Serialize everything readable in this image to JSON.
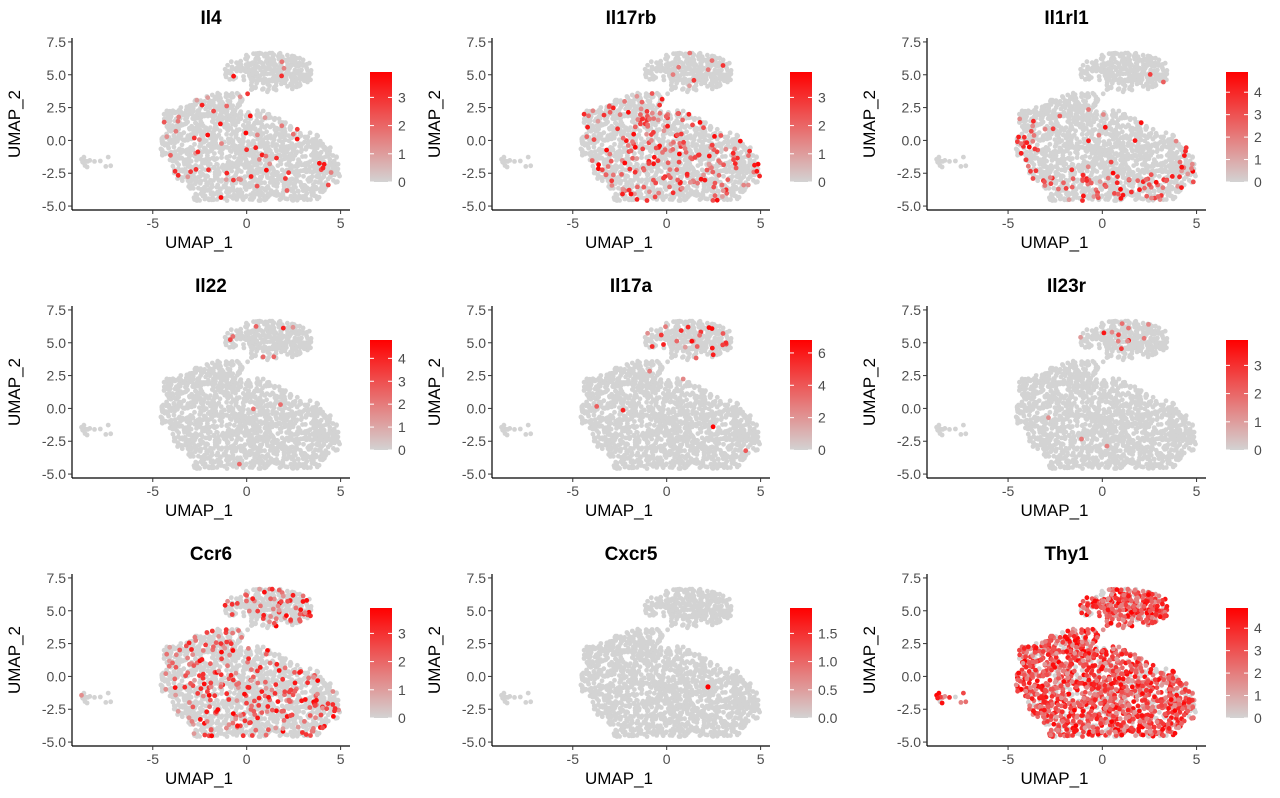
{
  "figure": {
    "layout": {
      "rows": 3,
      "cols": 3
    },
    "colors": {
      "low": "#d3d3d3",
      "high": "#ff0000",
      "axis": "#000000",
      "text": "#4d4d4d"
    }
  },
  "chart_data": [
    {
      "type": "scatter",
      "title": "Il4",
      "xlabel": "UMAP_1",
      "ylabel": "UMAP_2",
      "xlim": [
        -9.3,
        5.5
      ],
      "ylim": [
        -5.3,
        7.8
      ],
      "x_ticks": [
        -5,
        0,
        5
      ],
      "x_tick_labels": [
        "-5",
        "0",
        "5"
      ],
      "y_ticks": [
        -5.0,
        -2.5,
        0.0,
        2.5,
        5.0,
        7.5
      ],
      "y_tick_labels": [
        "-5.0",
        "-2.5",
        "0.0",
        "2.5",
        "5.0",
        "7.5"
      ],
      "legend": {
        "position": "right",
        "min": 0,
        "max": 3.9,
        "ticks": [
          0,
          1,
          2,
          3
        ],
        "tick_labels": [
          "0",
          "1",
          "2",
          "3"
        ]
      },
      "grid": false,
      "expression": {
        "density": 0.05,
        "region": "scattered",
        "max_value": 3.9
      }
    },
    {
      "type": "scatter",
      "title": "Il17rb",
      "xlabel": "UMAP_1",
      "ylabel": "UMAP_2",
      "xlim": [
        -9.3,
        5.5
      ],
      "ylim": [
        -5.3,
        7.8
      ],
      "x_ticks": [
        -5,
        0,
        5
      ],
      "x_tick_labels": [
        "-5",
        "0",
        "5"
      ],
      "y_ticks": [
        -5.0,
        -2.5,
        0.0,
        2.5,
        5.0,
        7.5
      ],
      "y_tick_labels": [
        "-5.0",
        "-2.5",
        "0.0",
        "2.5",
        "5.0",
        "7.5"
      ],
      "legend": {
        "position": "right",
        "min": 0,
        "max": 3.9,
        "ticks": [
          0,
          1,
          2,
          3
        ],
        "tick_labels": [
          "0",
          "1",
          "2",
          "3"
        ]
      },
      "grid": false,
      "expression": {
        "density": 0.14,
        "region": "body",
        "max_value": 3.9
      }
    },
    {
      "type": "scatter",
      "title": "Il1rl1",
      "xlabel": "UMAP_1",
      "ylabel": "UMAP_2",
      "xlim": [
        -9.3,
        5.5
      ],
      "ylim": [
        -5.3,
        7.8
      ],
      "x_ticks": [
        -5,
        0,
        5
      ],
      "x_tick_labels": [
        "-5",
        "0",
        "5"
      ],
      "y_ticks": [
        -5.0,
        -2.5,
        0.0,
        2.5,
        5.0,
        7.5
      ],
      "y_tick_labels": [
        "-5.0",
        "-2.5",
        "0.0",
        "2.5",
        "5.0",
        "7.5"
      ],
      "legend": {
        "position": "right",
        "min": 0,
        "max": 4.9,
        "ticks": [
          0,
          1,
          2,
          3,
          4
        ],
        "tick_labels": [
          "0",
          "1",
          "2",
          "3",
          "4"
        ]
      },
      "grid": false,
      "expression": {
        "density": 0.15,
        "region": "bottom-edge",
        "max_value": 4.9
      }
    },
    {
      "type": "scatter",
      "title": "Il22",
      "xlabel": "UMAP_1",
      "ylabel": "UMAP_2",
      "xlim": [
        -9.3,
        5.5
      ],
      "ylim": [
        -5.3,
        7.8
      ],
      "x_ticks": [
        -5,
        0,
        5
      ],
      "x_tick_labels": [
        "-5",
        "0",
        "5"
      ],
      "y_ticks": [
        -5.0,
        -2.5,
        0.0,
        2.5,
        5.0,
        7.5
      ],
      "y_tick_labels": [
        "-5.0",
        "-2.5",
        "0.0",
        "2.5",
        "5.0",
        "7.5"
      ],
      "legend": {
        "position": "right",
        "min": 0,
        "max": 4.8,
        "ticks": [
          0,
          1,
          2,
          3,
          4
        ],
        "tick_labels": [
          "0",
          "1",
          "2",
          "3",
          "4"
        ]
      },
      "grid": false,
      "expression": {
        "density": 0.03,
        "region": "top-blob",
        "max_value": 4.8
      }
    },
    {
      "type": "scatter",
      "title": "Il17a",
      "xlabel": "UMAP_1",
      "ylabel": "UMAP_2",
      "xlim": [
        -9.3,
        5.5
      ],
      "ylim": [
        -5.3,
        7.8
      ],
      "x_ticks": [
        -5,
        0,
        5
      ],
      "x_tick_labels": [
        "-5",
        "0",
        "5"
      ],
      "y_ticks": [
        -5.0,
        -2.5,
        0.0,
        2.5,
        5.0,
        7.5
      ],
      "y_tick_labels": [
        "-5.0",
        "-2.5",
        "0.0",
        "2.5",
        "5.0",
        "7.5"
      ],
      "legend": {
        "position": "right",
        "min": 0,
        "max": 6.8,
        "ticks": [
          0,
          2,
          4,
          6
        ],
        "tick_labels": [
          "0",
          "2",
          "4",
          "6"
        ]
      },
      "grid": false,
      "expression": {
        "density": 0.08,
        "region": "top-blob",
        "max_value": 6.8
      }
    },
    {
      "type": "scatter",
      "title": "Il23r",
      "xlabel": "UMAP_1",
      "ylabel": "UMAP_2",
      "xlim": [
        -9.3,
        5.5
      ],
      "ylim": [
        -5.3,
        7.8
      ],
      "x_ticks": [
        -5,
        0,
        5
      ],
      "x_tick_labels": [
        "-5",
        "0",
        "5"
      ],
      "y_ticks": [
        -5.0,
        -2.5,
        0.0,
        2.5,
        5.0,
        7.5
      ],
      "y_tick_labels": [
        "-5.0",
        "-2.5",
        "0.0",
        "2.5",
        "5.0",
        "7.5"
      ],
      "legend": {
        "position": "right",
        "min": 0,
        "max": 3.9,
        "ticks": [
          0,
          1,
          2,
          3
        ],
        "tick_labels": [
          "0",
          "1",
          "2",
          "3"
        ]
      },
      "grid": false,
      "expression": {
        "density": 0.05,
        "region": "top-blob",
        "max_value": 3.9
      }
    },
    {
      "type": "scatter",
      "title": "Ccr6",
      "xlabel": "UMAP_1",
      "ylabel": "UMAP_2",
      "xlim": [
        -9.3,
        5.5
      ],
      "ylim": [
        -5.3,
        7.8
      ],
      "x_ticks": [
        -5,
        0,
        5
      ],
      "x_tick_labels": [
        "-5",
        "0",
        "5"
      ],
      "y_ticks": [
        -5.0,
        -2.5,
        0.0,
        2.5,
        5.0,
        7.5
      ],
      "y_tick_labels": [
        "-5.0",
        "-2.5",
        "0.0",
        "2.5",
        "5.0",
        "7.5"
      ],
      "legend": {
        "position": "right",
        "min": 0,
        "max": 3.9,
        "ticks": [
          0,
          1,
          2,
          3
        ],
        "tick_labels": [
          "0",
          "1",
          "2",
          "3"
        ]
      },
      "grid": false,
      "expression": {
        "density": 0.16,
        "region": "everywhere",
        "max_value": 3.9
      }
    },
    {
      "type": "scatter",
      "title": "Cxcr5",
      "xlabel": "UMAP_1",
      "ylabel": "UMAP_2",
      "xlim": [
        -9.3,
        5.5
      ],
      "ylim": [
        -5.3,
        7.8
      ],
      "x_ticks": [
        -5,
        0,
        5
      ],
      "x_tick_labels": [
        "-5",
        "0",
        "5"
      ],
      "y_ticks": [
        -5.0,
        -2.5,
        0.0,
        2.5,
        5.0,
        7.5
      ],
      "y_tick_labels": [
        "-5.0",
        "-2.5",
        "0.0",
        "2.5",
        "5.0",
        "7.5"
      ],
      "legend": {
        "position": "right",
        "min": 0,
        "max": 1.95,
        "ticks": [
          0,
          0.5,
          1.0,
          1.5
        ],
        "tick_labels": [
          "0.0",
          "0.5",
          "1.0",
          "1.5"
        ]
      },
      "grid": false,
      "expression": {
        "density": 0.0,
        "region": "single",
        "max_value": 1.95,
        "points": [
          {
            "x": 2.2,
            "y": -0.8,
            "value": 1.95
          }
        ]
      }
    },
    {
      "type": "scatter",
      "title": "Thy1",
      "xlabel": "UMAP_1",
      "ylabel": "UMAP_2",
      "xlim": [
        -9.3,
        5.5
      ],
      "ylim": [
        -5.3,
        7.8
      ],
      "x_ticks": [
        -5,
        0,
        5
      ],
      "x_tick_labels": [
        "-5",
        "0",
        "5"
      ],
      "y_ticks": [
        -5.0,
        -2.5,
        0.0,
        2.5,
        5.0,
        7.5
      ],
      "y_tick_labels": [
        "-5.0",
        "-2.5",
        "0.0",
        "2.5",
        "5.0",
        "7.5"
      ],
      "legend": {
        "position": "right",
        "min": 0,
        "max": 4.9,
        "ticks": [
          0,
          1,
          2,
          3,
          4
        ],
        "tick_labels": [
          "0",
          "1",
          "2",
          "3",
          "4"
        ]
      },
      "grid": false,
      "expression": {
        "density": 0.78,
        "region": "everywhere",
        "max_value": 4.9
      }
    }
  ]
}
